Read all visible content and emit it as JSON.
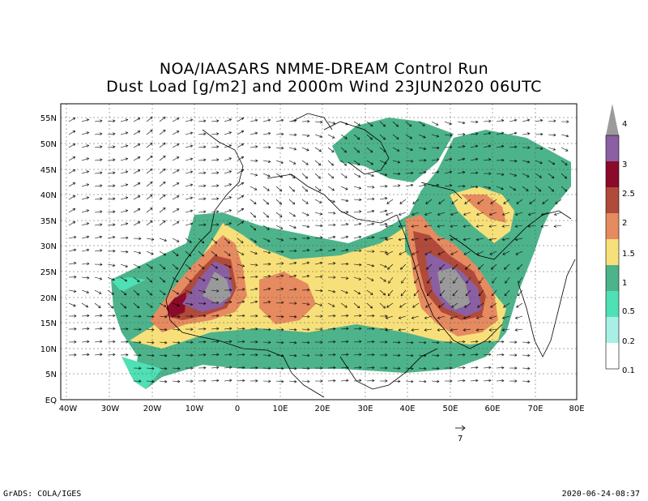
{
  "title_line1": "NOA/IAASARS NMME-DREAM Control Run",
  "title_line2": "Dust Load [g/m2] and 2000m Wind 23JUN2020 06UTC",
  "lat_labels": [
    "55N",
    "50N",
    "45N",
    "40N",
    "35N",
    "30N",
    "25N",
    "20N",
    "15N",
    "10N",
    "5N",
    "EQ"
  ],
  "lon_labels": [
    "40W",
    "30W",
    "20W",
    "10W",
    "0",
    "10E",
    "20E",
    "30E",
    "40E",
    "50E",
    "60E",
    "70E",
    "80E"
  ],
  "colorbar": {
    "levels": [
      "4",
      "3",
      "2.5",
      "2",
      "1.5",
      "1",
      "0.5",
      "0.2",
      "0.1"
    ],
    "colors": [
      "#9a9a9a",
      "#8b5fa3",
      "#8b0a2a",
      "#b04a3a",
      "#e68a60",
      "#f7e07a",
      "#4db38a",
      "#4fe0b5",
      "#a8f0e6"
    ]
  },
  "vector_scale_label": "7",
  "footer_left": "GrADS: COLA/IGES",
  "footer_right": "2020-06-24-08:37"
}
